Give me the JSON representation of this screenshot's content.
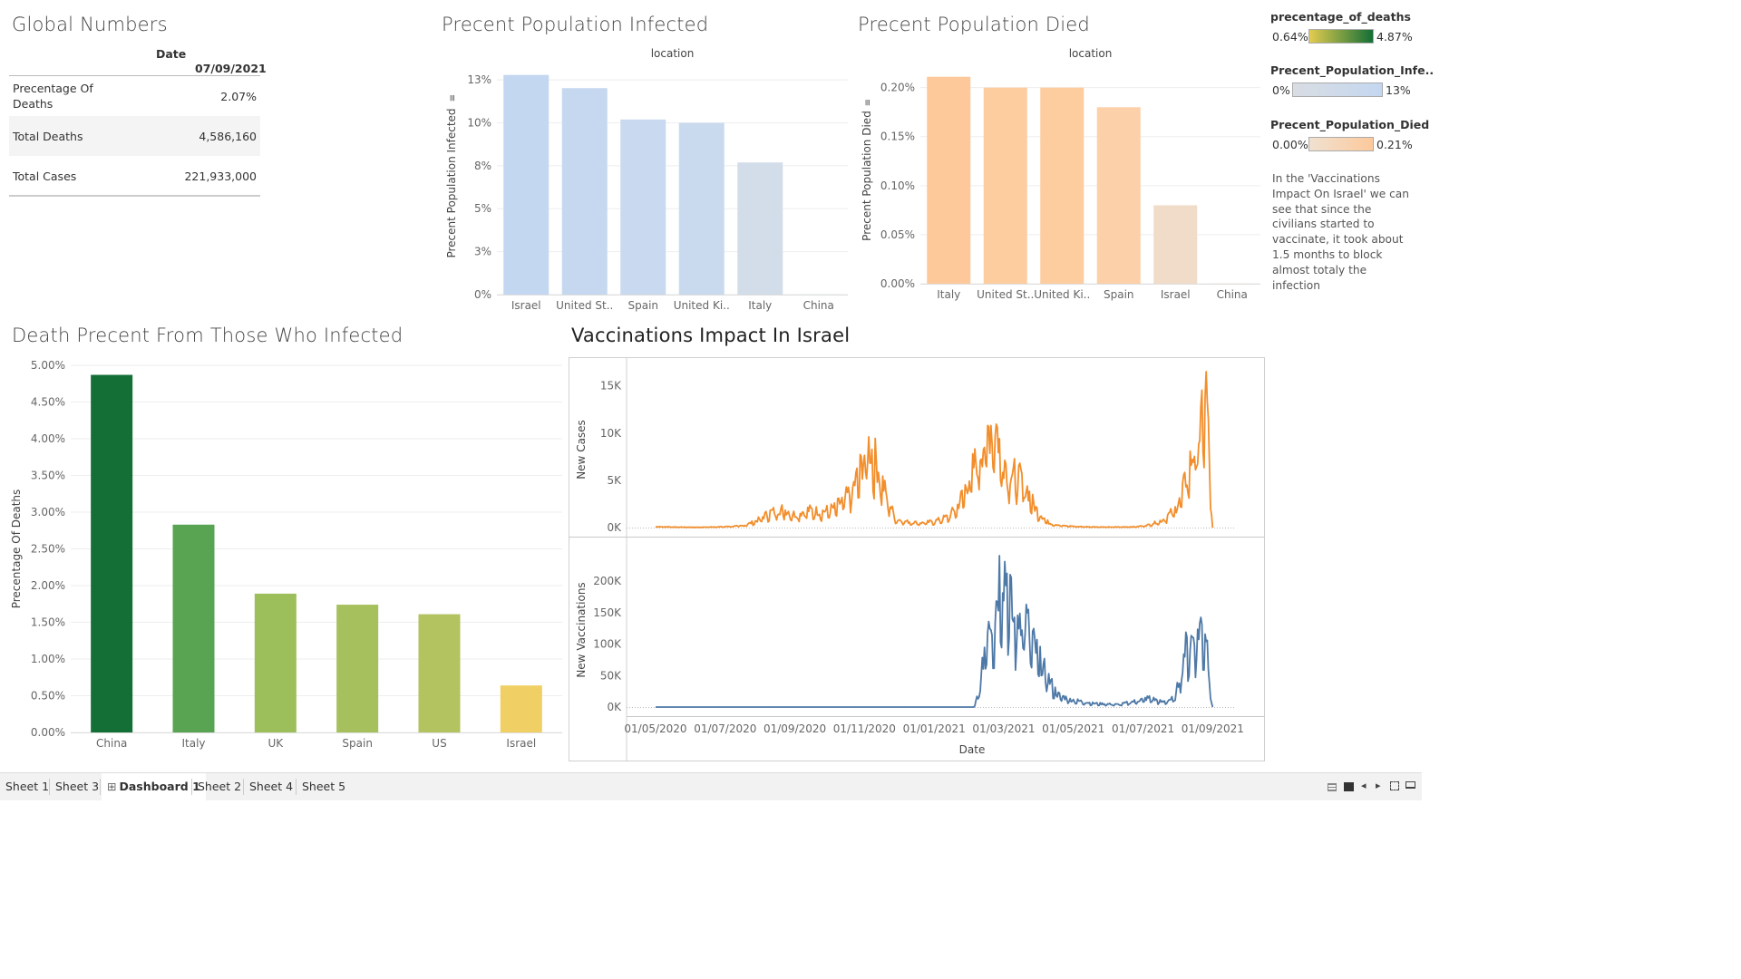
{
  "global_numbers": {
    "title": "Global Numbers",
    "header_label": "Date",
    "header_date": "07/09/2021",
    "rows": [
      {
        "label": "Precentage Of Deaths",
        "value": "2.07%"
      },
      {
        "label": "Total Deaths",
        "value": "4,586,160"
      },
      {
        "label": "Total Cases",
        "value": "221,933,000"
      }
    ]
  },
  "legends": {
    "deaths_pct": {
      "title": "precentage_of_deaths",
      "min": "0.64%",
      "max": "4.87%",
      "color_start": "#e3cc4f",
      "color_end": "#136f36"
    },
    "infected": {
      "title": "Precent_Population_Infe..",
      "min": "0%",
      "max": "13%",
      "color_start": "#d9dde3",
      "color_end": "#c4d7f0"
    },
    "died": {
      "title": "Precent_Population_Died",
      "min": "0.00%",
      "max": "0.21%",
      "color_start": "#f0e1d1",
      "color_end": "#fdc99b"
    }
  },
  "note": "In the 'Vaccinations Impact On Israel' we can see that since the civilians started to vaccinate, it took about 1.5 months to block almost totaly the infection",
  "chart_data": [
    {
      "id": "infected",
      "type": "bar",
      "title": "Precent Population Infected",
      "header": "location",
      "ylabel": "Precent Population Infected",
      "categories": [
        "Israel",
        "United St..",
        "Spain",
        "United Ki..",
        "Italy",
        "China"
      ],
      "values": [
        13.3,
        12.5,
        10.6,
        10.4,
        8.0,
        0.01
      ],
      "ylim": [
        0,
        13.5
      ],
      "yticks": [
        {
          "v": 0,
          "label": "0%"
        },
        {
          "v": 2.6,
          "label": "3%"
        },
        {
          "v": 5.2,
          "label": "5%"
        },
        {
          "v": 7.8,
          "label": "8%"
        },
        {
          "v": 10.4,
          "label": "10%"
        },
        {
          "v": 13.0,
          "label": "13%"
        }
      ],
      "colors": [
        "#c4d7f0",
        "#c6d8f0",
        "#c9d9ef",
        "#cadaee",
        "#d3dde9",
        "#d9dde3"
      ]
    },
    {
      "id": "died",
      "type": "bar",
      "title": "Precent Population Died",
      "header": "location",
      "ylabel": "Precent Population Died",
      "categories": [
        "Italy",
        "United St..",
        "United Ki..",
        "Spain",
        "Israel",
        "China"
      ],
      "values": [
        0.211,
        0.2,
        0.2,
        0.18,
        0.08,
        0.0003
      ],
      "ylim": [
        0,
        0.22
      ],
      "yticks": [
        {
          "v": 0,
          "label": "0.00%"
        },
        {
          "v": 0.05,
          "label": "0.05%"
        },
        {
          "v": 0.1,
          "label": "0.10%"
        },
        {
          "v": 0.15,
          "label": "0.15%"
        },
        {
          "v": 0.2,
          "label": "0.20%"
        }
      ],
      "colors": [
        "#fdc99b",
        "#fdcc9f",
        "#fdcc9f",
        "#fcd0a8",
        "#f0dcc9",
        "#f0e1d1"
      ]
    },
    {
      "id": "death_pct",
      "type": "bar",
      "title": "Death Precent From Those Who Infected",
      "ylabel": "Precentage Of Deaths",
      "categories": [
        "China",
        "Italy",
        "UK",
        "Spain",
        "US",
        "Israel"
      ],
      "values": [
        4.87,
        2.83,
        1.89,
        1.74,
        1.61,
        0.64
      ],
      "ylim": [
        0,
        5.0
      ],
      "yticks": [
        {
          "v": 0,
          "label": "0.00%"
        },
        {
          "v": 0.5,
          "label": "0.50%"
        },
        {
          "v": 1.0,
          "label": "1.00%"
        },
        {
          "v": 1.5,
          "label": "1.50%"
        },
        {
          "v": 2.0,
          "label": "2.00%"
        },
        {
          "v": 2.5,
          "label": "2.50%"
        },
        {
          "v": 3.0,
          "label": "3.00%"
        },
        {
          "v": 3.5,
          "label": "3.50%"
        },
        {
          "v": 4.0,
          "label": "4.00%"
        },
        {
          "v": 4.5,
          "label": "4.50%"
        },
        {
          "v": 5.0,
          "label": "5.00%"
        }
      ],
      "colors": [
        "#136f36",
        "#58a452",
        "#9cbf5b",
        "#a6c05d",
        "#b2c35f",
        "#f0d064"
      ]
    },
    {
      "id": "vacc",
      "type": "line",
      "title": "Vaccinations Impact In Israel",
      "xlabel": "Date",
      "xticks": [
        "01/05/2020",
        "01/07/2020",
        "01/09/2020",
        "01/11/2020",
        "01/01/2021",
        "01/03/2021",
        "01/05/2021",
        "01/07/2021",
        "01/09/2021"
      ],
      "series": [
        {
          "name": "New Cases",
          "color": "#f28e2b",
          "ylim": [
            0,
            16500
          ],
          "yticks": [
            {
              "v": 0,
              "label": "0K"
            },
            {
              "v": 5000,
              "label": "5K"
            },
            {
              "v": 10000,
              "label": "10K"
            },
            {
              "v": 15000,
              "label": "15K"
            }
          ],
          "keypoints": [
            [
              0,
              100
            ],
            [
              0.5,
              50
            ],
            [
              1,
              30
            ],
            [
              1.5,
              80
            ],
            [
              2,
              200
            ],
            [
              2.3,
              700
            ],
            [
              2.6,
              1600
            ],
            [
              2.9,
              2000
            ],
            [
              3.2,
              1400
            ],
            [
              3.5,
              1900
            ],
            [
              3.8,
              1700
            ],
            [
              4.1,
              2100
            ],
            [
              4.3,
              3000
            ],
            [
              4.5,
              4000
            ],
            [
              4.7,
              6500
            ],
            [
              4.85,
              8900
            ],
            [
              5.0,
              7800
            ],
            [
              5.15,
              5500
            ],
            [
              5.3,
              3200
            ],
            [
              5.5,
              900
            ],
            [
              5.8,
              600
            ],
            [
              6.1,
              500
            ],
            [
              6.4,
              700
            ],
            [
              6.7,
              1200
            ],
            [
              6.9,
              2200
            ],
            [
              7.2,
              5500
            ],
            [
              7.4,
              8000
            ],
            [
              7.6,
              10100
            ],
            [
              7.75,
              12000
            ],
            [
              7.9,
              8200
            ],
            [
              8.1,
              6000
            ],
            [
              8.3,
              5500
            ],
            [
              8.5,
              4200
            ],
            [
              8.7,
              2000
            ],
            [
              9.0,
              500
            ],
            [
              9.3,
              200
            ],
            [
              9.7,
              100
            ],
            [
              10.3,
              50
            ],
            [
              11.0,
              80
            ],
            [
              11.3,
              300
            ],
            [
              11.6,
              800
            ],
            [
              11.9,
              2000
            ],
            [
              12.1,
              4500
            ],
            [
              12.3,
              8000
            ],
            [
              12.5,
              11000
            ],
            [
              12.6,
              16500
            ],
            [
              12.68,
              6000
            ],
            [
              12.75,
              0
            ]
          ]
        },
        {
          "name": "New Vaccinations",
          "color": "#4e79a7",
          "ylim": [
            0,
            245000
          ],
          "yticks": [
            {
              "v": 0,
              "label": "0K"
            },
            {
              "v": 50000,
              "label": "50K"
            },
            {
              "v": 100000,
              "label": "100K"
            },
            {
              "v": 150000,
              "label": "150K"
            },
            {
              "v": 200000,
              "label": "200K"
            }
          ],
          "keypoints": [
            [
              0,
              0
            ],
            [
              7.3,
              0
            ],
            [
              7.45,
              40000
            ],
            [
              7.6,
              150000
            ],
            [
              7.75,
              140000
            ],
            [
              7.9,
              235000
            ],
            [
              8.05,
              210000
            ],
            [
              8.2,
              130000
            ],
            [
              8.4,
              160000
            ],
            [
              8.6,
              110000
            ],
            [
              8.8,
              75000
            ],
            [
              9.0,
              45000
            ],
            [
              9.2,
              20000
            ],
            [
              9.5,
              12000
            ],
            [
              10.0,
              6000
            ],
            [
              10.6,
              4000
            ],
            [
              11.0,
              10000
            ],
            [
              11.3,
              15000
            ],
            [
              11.6,
              8000
            ],
            [
              11.9,
              15000
            ],
            [
              12.1,
              90000
            ],
            [
              12.3,
              110000
            ],
            [
              12.45,
              130000
            ],
            [
              12.6,
              125000
            ],
            [
              12.7,
              30000
            ],
            [
              12.75,
              0
            ]
          ]
        }
      ]
    }
  ],
  "tabs": [
    {
      "label": "Sheet 1",
      "active": false
    },
    {
      "label": "Sheet 3",
      "active": false
    },
    {
      "label": "Dashboard 1",
      "active": true
    },
    {
      "label": "Sheet 2",
      "active": false
    },
    {
      "label": "Sheet 4",
      "active": false
    },
    {
      "label": "Sheet 5",
      "active": false
    }
  ],
  "status_icons": [
    "grid-view-icon",
    "filmstrip-icon",
    "prev-icon",
    "next-icon",
    "fullscreen-icon",
    "presentation-icon"
  ]
}
